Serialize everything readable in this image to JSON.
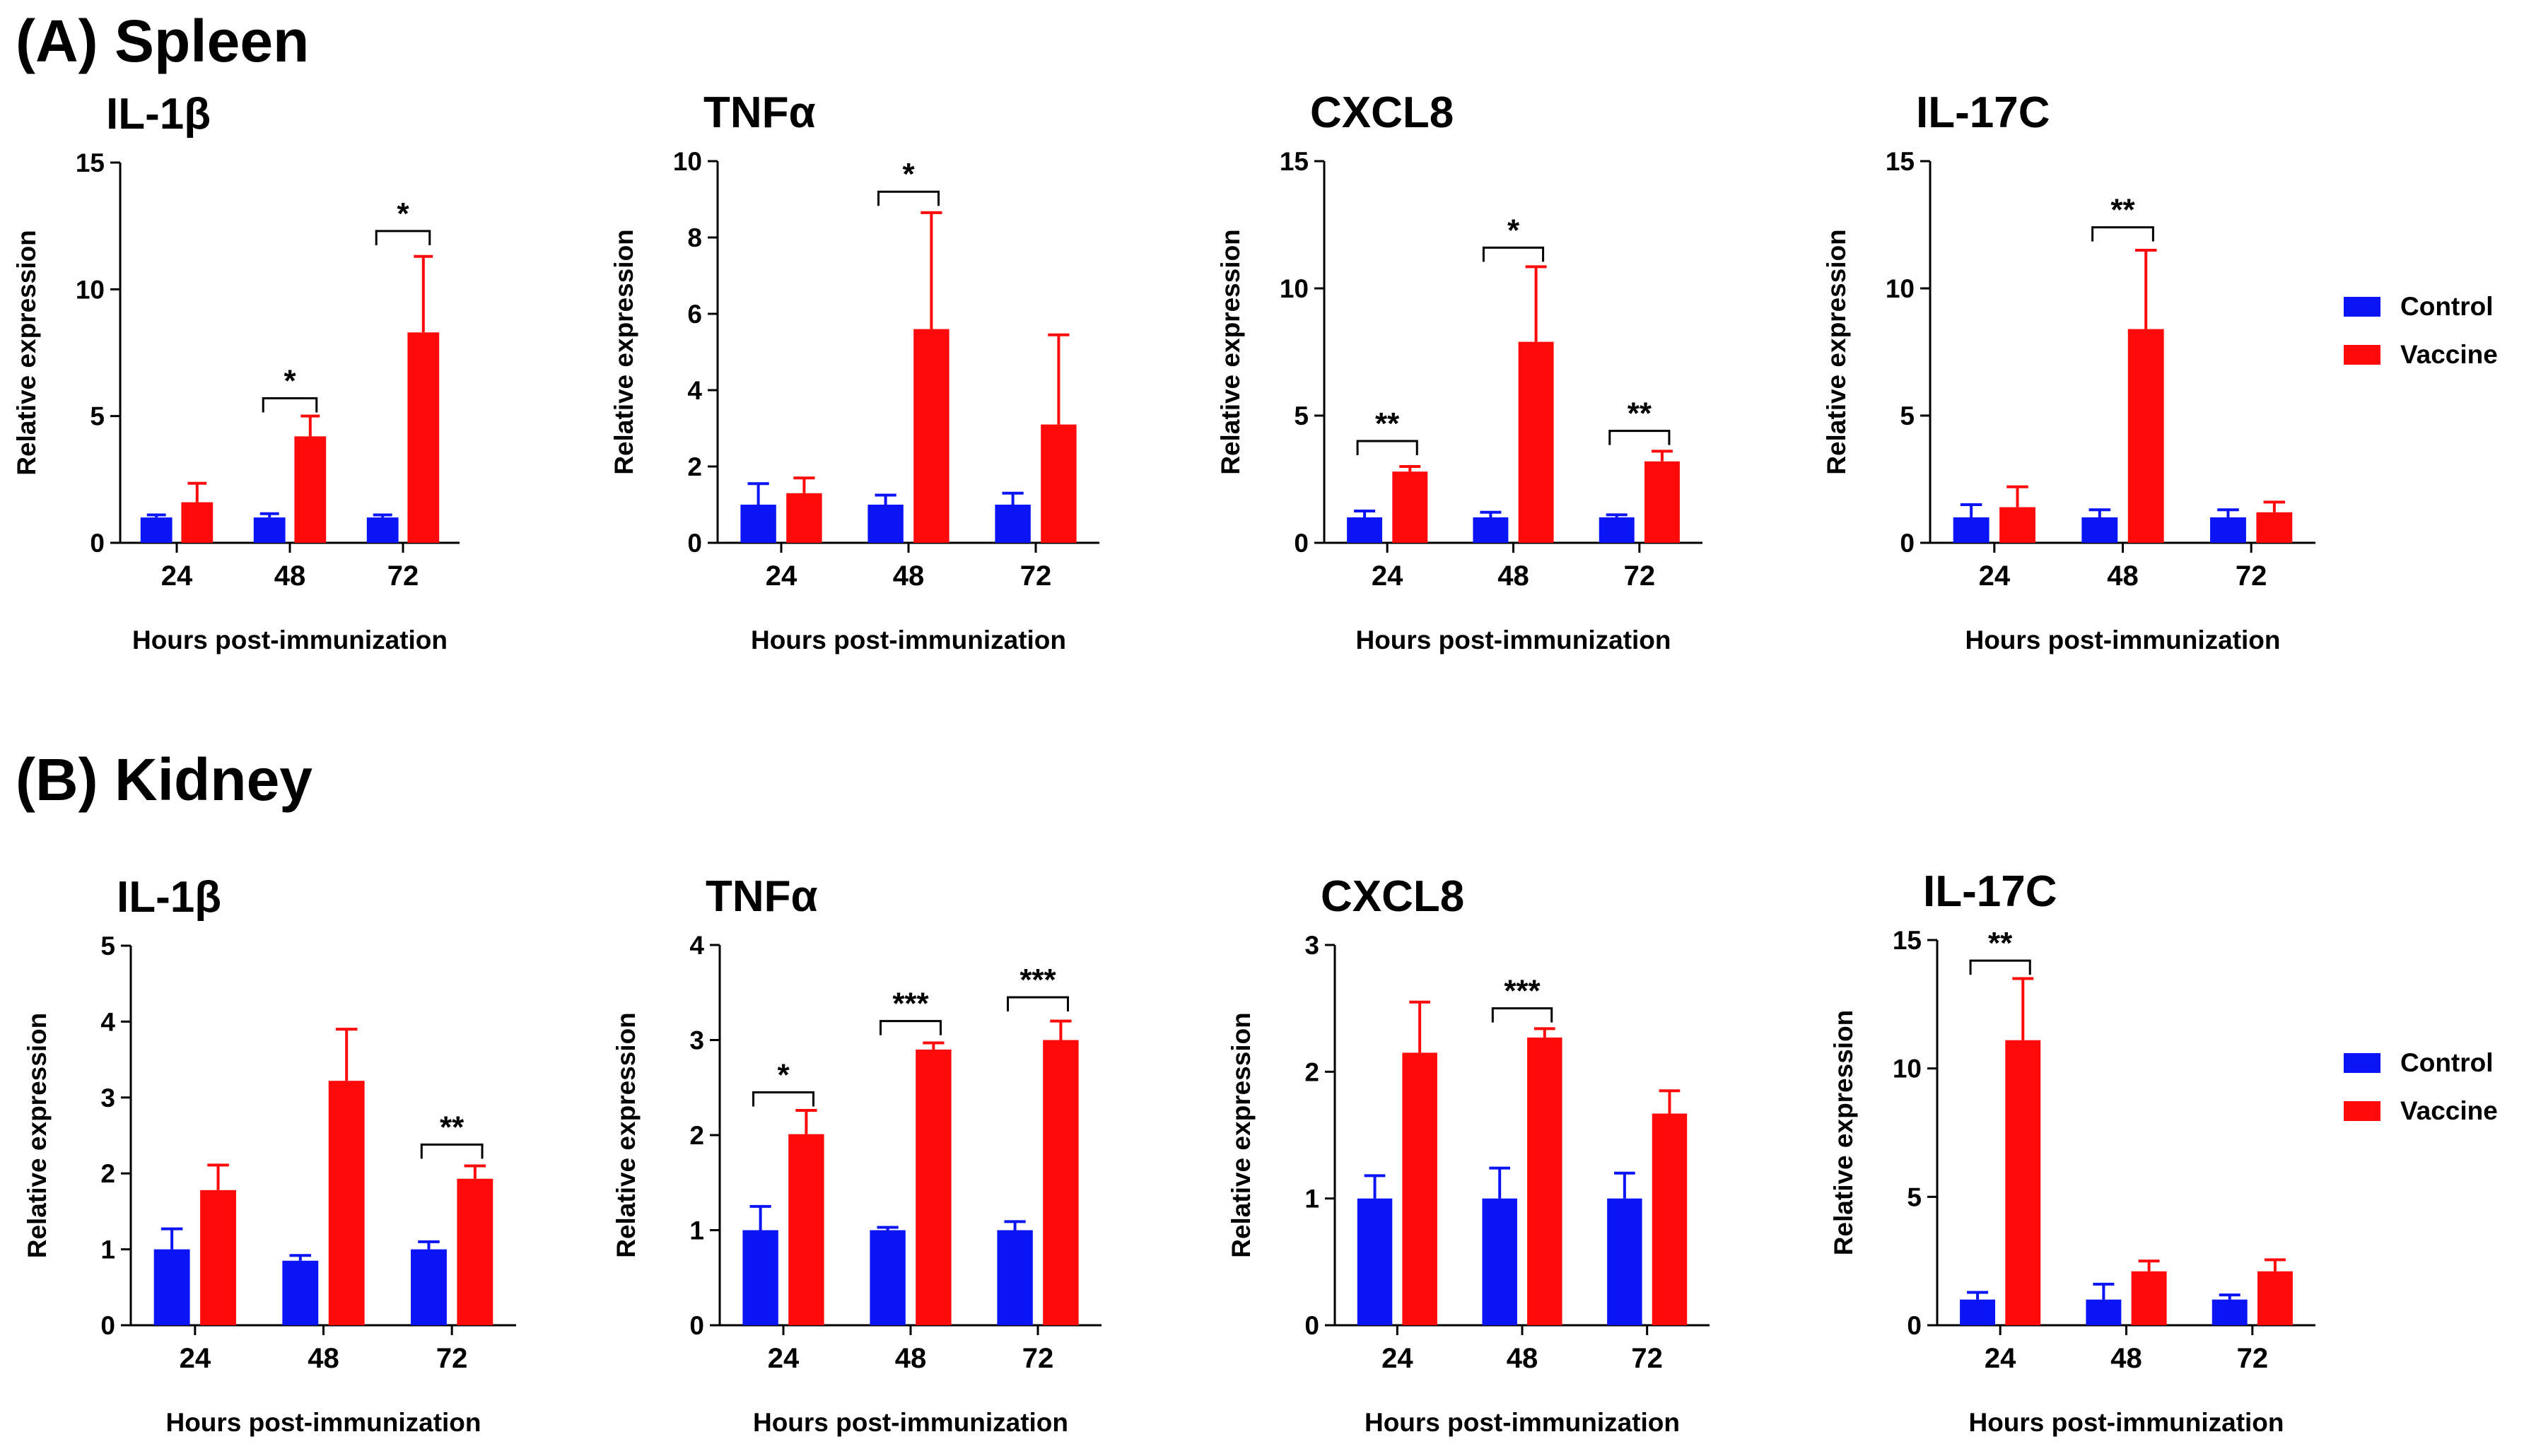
{
  "colors": {
    "control": "#0a14f5",
    "vaccine": "#ff0a0a",
    "axis": "#000000"
  },
  "sections": [
    {
      "label": "(A) Spleen"
    },
    {
      "label": "(B) Kidney"
    }
  ],
  "legend": {
    "control": "Control",
    "vaccine": "Vaccine"
  },
  "chart_data": [
    {
      "type": "bar",
      "section": "A",
      "title": "IL-1β",
      "xlabel": "Hours post-immunization",
      "ylabel": "Relative expression",
      "categories": [
        "24",
        "48",
        "72"
      ],
      "ylim": [
        0,
        15
      ],
      "yticks": [
        0,
        5,
        10,
        15
      ],
      "series": [
        {
          "name": "Control",
          "values": [
            1.0,
            1.0,
            1.0
          ],
          "errors": [
            0.1,
            0.15,
            0.1
          ]
        },
        {
          "name": "Vaccine",
          "values": [
            1.6,
            4.2,
            8.3
          ],
          "errors": [
            0.75,
            0.8,
            3.0
          ]
        }
      ],
      "significance": [
        {
          "category": 1,
          "label": "*",
          "bracket_y": 5.7
        },
        {
          "category": 2,
          "label": "*",
          "bracket_y": 12.3
        }
      ]
    },
    {
      "type": "bar",
      "section": "A",
      "title": "TNFα",
      "xlabel": "Hours post-immunization",
      "ylabel": "Relative expression",
      "categories": [
        "24",
        "48",
        "72"
      ],
      "ylim": [
        0,
        10
      ],
      "yticks": [
        0,
        2,
        4,
        6,
        8,
        10
      ],
      "series": [
        {
          "name": "Control",
          "values": [
            1.0,
            1.0,
            1.0
          ],
          "errors": [
            0.55,
            0.25,
            0.3
          ]
        },
        {
          "name": "Vaccine",
          "values": [
            1.3,
            5.6,
            3.1
          ],
          "errors": [
            0.4,
            3.05,
            2.35
          ]
        }
      ],
      "significance": [
        {
          "category": 1,
          "label": "*",
          "bracket_y": 9.2
        }
      ]
    },
    {
      "type": "bar",
      "section": "A",
      "title": "CXCL8",
      "xlabel": "Hours post-immunization",
      "ylabel": "Relative expression",
      "categories": [
        "24",
        "48",
        "72"
      ],
      "ylim": [
        0,
        15
      ],
      "yticks": [
        0,
        5,
        10,
        15
      ],
      "series": [
        {
          "name": "Control",
          "values": [
            1.0,
            1.0,
            1.0
          ],
          "errors": [
            0.25,
            0.2,
            0.1
          ]
        },
        {
          "name": "Vaccine",
          "values": [
            2.8,
            7.9,
            3.2
          ],
          "errors": [
            0.2,
            2.95,
            0.4
          ]
        }
      ],
      "significance": [
        {
          "category": 0,
          "label": "**",
          "bracket_y": 4.0
        },
        {
          "category": 1,
          "label": "*",
          "bracket_y": 11.6
        },
        {
          "category": 2,
          "label": "**",
          "bracket_y": 4.4
        }
      ]
    },
    {
      "type": "bar",
      "section": "A",
      "title": "IL-17C",
      "xlabel": "Hours post-immunization",
      "ylabel": "Relative expression",
      "categories": [
        "24",
        "48",
        "72"
      ],
      "ylim": [
        0,
        15
      ],
      "yticks": [
        0,
        5,
        10,
        15
      ],
      "series": [
        {
          "name": "Control",
          "values": [
            1.0,
            1.0,
            1.0
          ],
          "errors": [
            0.5,
            0.3,
            0.3
          ]
        },
        {
          "name": "Vaccine",
          "values": [
            1.4,
            8.4,
            1.2
          ],
          "errors": [
            0.8,
            3.1,
            0.4
          ]
        }
      ],
      "significance": [
        {
          "category": 1,
          "label": "**",
          "bracket_y": 12.4
        }
      ]
    },
    {
      "type": "bar",
      "section": "B",
      "title": "IL-1β",
      "xlabel": "Hours post-immunization",
      "ylabel": "Relative expression",
      "categories": [
        "24",
        "48",
        "72"
      ],
      "ylim": [
        0,
        5
      ],
      "yticks": [
        0,
        1,
        2,
        3,
        4,
        5
      ],
      "series": [
        {
          "name": "Control",
          "values": [
            1.0,
            0.85,
            1.0
          ],
          "errors": [
            0.27,
            0.07,
            0.1
          ]
        },
        {
          "name": "Vaccine",
          "values": [
            1.78,
            3.22,
            1.93
          ],
          "errors": [
            0.33,
            0.68,
            0.17
          ]
        }
      ],
      "significance": [
        {
          "category": 2,
          "label": "**",
          "bracket_y": 2.38
        }
      ]
    },
    {
      "type": "bar",
      "section": "B",
      "title": "TNFα",
      "xlabel": "Hours post-immunization",
      "ylabel": "Relative expression",
      "categories": [
        "24",
        "48",
        "72"
      ],
      "ylim": [
        0,
        4
      ],
      "yticks": [
        0,
        1,
        2,
        3,
        4
      ],
      "series": [
        {
          "name": "Control",
          "values": [
            1.0,
            1.0,
            1.0
          ],
          "errors": [
            0.25,
            0.03,
            0.09
          ]
        },
        {
          "name": "Vaccine",
          "values": [
            2.01,
            2.9,
            3.0
          ],
          "errors": [
            0.25,
            0.07,
            0.2
          ]
        }
      ],
      "significance": [
        {
          "category": 0,
          "label": "*",
          "bracket_y": 2.45
        },
        {
          "category": 1,
          "label": "***",
          "bracket_y": 3.2
        },
        {
          "category": 2,
          "label": "***",
          "bracket_y": 3.45
        }
      ]
    },
    {
      "type": "bar",
      "section": "B",
      "title": "CXCL8",
      "xlabel": "Hours post-immunization",
      "ylabel": "Relative expression",
      "categories": [
        "24",
        "48",
        "72"
      ],
      "ylim": [
        0,
        3
      ],
      "yticks": [
        0,
        1,
        2,
        3
      ],
      "series": [
        {
          "name": "Control",
          "values": [
            1.0,
            1.0,
            1.0
          ],
          "errors": [
            0.18,
            0.24,
            0.2
          ]
        },
        {
          "name": "Vaccine",
          "values": [
            2.15,
            2.27,
            1.67
          ],
          "errors": [
            0.4,
            0.07,
            0.18
          ]
        }
      ],
      "significance": [
        {
          "category": 1,
          "label": "***",
          "bracket_y": 2.5
        }
      ]
    },
    {
      "type": "bar",
      "section": "B",
      "title": "IL-17C",
      "xlabel": "Hours post-immunization",
      "ylabel": "Relative expression",
      "categories": [
        "24",
        "48",
        "72"
      ],
      "ylim": [
        0,
        15
      ],
      "yticks": [
        0,
        5,
        10,
        15
      ],
      "series": [
        {
          "name": "Control",
          "values": [
            1.0,
            1.0,
            1.0
          ],
          "errors": [
            0.28,
            0.6,
            0.18
          ]
        },
        {
          "name": "Vaccine",
          "values": [
            11.1,
            2.1,
            2.1
          ],
          "errors": [
            2.4,
            0.4,
            0.45
          ]
        }
      ],
      "significance": [
        {
          "category": 0,
          "label": "**",
          "bracket_y": 14.2
        }
      ]
    }
  ]
}
